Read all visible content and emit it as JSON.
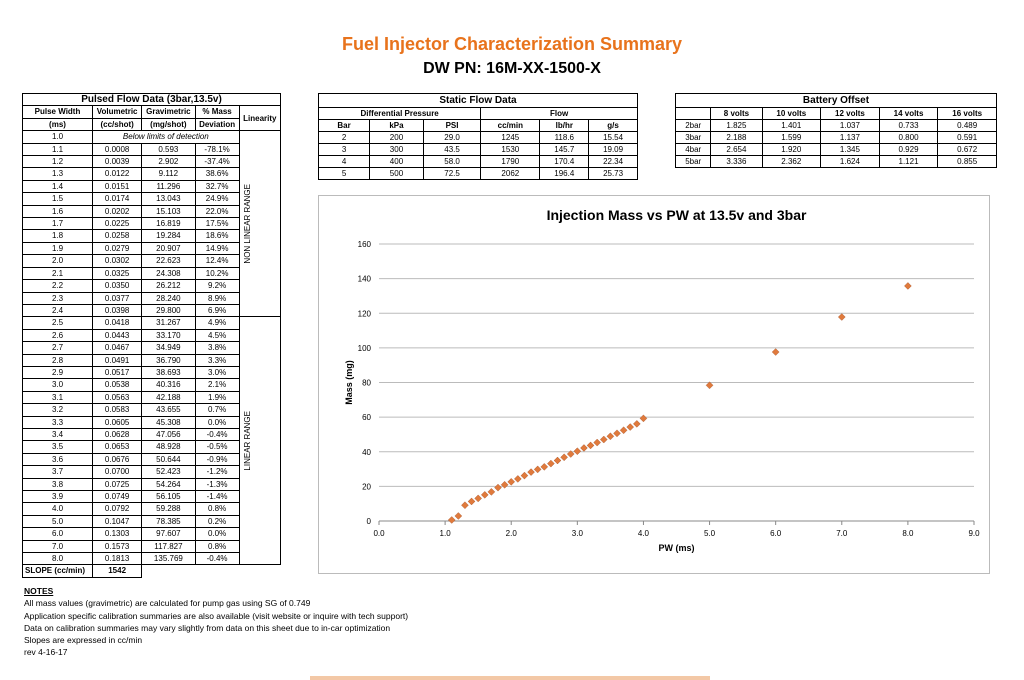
{
  "header": {
    "title": "Fuel Injector Characterization Summary",
    "subtitle": "DW PN: 16M-XX-1500-X"
  },
  "pulsed": {
    "title": "Pulsed Flow Data (3bar,13.5v)",
    "headers1": [
      "Pulse Width",
      "Volumetric",
      "Gravimetric",
      "% Mass",
      "Linearity"
    ],
    "headers2": [
      "(ms)",
      "(cc/shot)",
      "(mg/shot)",
      "Deviation"
    ],
    "below_limits": "Below limits of detection",
    "nonlinear_label": "NON LINEAR RANGE",
    "linear_label": "LINEAR RANGE",
    "rows": [
      [
        "1.0",
        "",
        "",
        ""
      ],
      [
        "1.1",
        "0.0008",
        "0.593",
        "-78.1%"
      ],
      [
        "1.2",
        "0.0039",
        "2.902",
        "-37.4%"
      ],
      [
        "1.3",
        "0.0122",
        "9.112",
        "38.6%"
      ],
      [
        "1.4",
        "0.0151",
        "11.296",
        "32.7%"
      ],
      [
        "1.5",
        "0.0174",
        "13.043",
        "24.9%"
      ],
      [
        "1.6",
        "0.0202",
        "15.103",
        "22.0%"
      ],
      [
        "1.7",
        "0.0225",
        "16.819",
        "17.5%"
      ],
      [
        "1.8",
        "0.0258",
        "19.284",
        "18.6%"
      ],
      [
        "1.9",
        "0.0279",
        "20.907",
        "14.9%"
      ],
      [
        "2.0",
        "0.0302",
        "22.623",
        "12.4%"
      ],
      [
        "2.1",
        "0.0325",
        "24.308",
        "10.2%"
      ],
      [
        "2.2",
        "0.0350",
        "26.212",
        "9.2%"
      ],
      [
        "2.3",
        "0.0377",
        "28.240",
        "8.9%"
      ],
      [
        "2.4",
        "0.0398",
        "29.800",
        "6.9%"
      ],
      [
        "2.5",
        "0.0418",
        "31.267",
        "4.9%"
      ],
      [
        "2.6",
        "0.0443",
        "33.170",
        "4.5%"
      ],
      [
        "2.7",
        "0.0467",
        "34.949",
        "3.8%"
      ],
      [
        "2.8",
        "0.0491",
        "36.790",
        "3.3%"
      ],
      [
        "2.9",
        "0.0517",
        "38.693",
        "3.0%"
      ],
      [
        "3.0",
        "0.0538",
        "40.316",
        "2.1%"
      ],
      [
        "3.1",
        "0.0563",
        "42.188",
        "1.9%"
      ],
      [
        "3.2",
        "0.0583",
        "43.655",
        "0.7%"
      ],
      [
        "3.3",
        "0.0605",
        "45.308",
        "0.0%"
      ],
      [
        "3.4",
        "0.0628",
        "47.056",
        "-0.4%"
      ],
      [
        "3.5",
        "0.0653",
        "48.928",
        "-0.5%"
      ],
      [
        "3.6",
        "0.0676",
        "50.644",
        "-0.9%"
      ],
      [
        "3.7",
        "0.0700",
        "52.423",
        "-1.2%"
      ],
      [
        "3.8",
        "0.0725",
        "54.264",
        "-1.3%"
      ],
      [
        "3.9",
        "0.0749",
        "56.105",
        "-1.4%"
      ],
      [
        "4.0",
        "0.0792",
        "59.288",
        "0.8%"
      ],
      [
        "5.0",
        "0.1047",
        "78.385",
        "0.2%"
      ],
      [
        "6.0",
        "0.1303",
        "97.607",
        "0.0%"
      ],
      [
        "7.0",
        "0.1573",
        "117.827",
        "0.8%"
      ],
      [
        "8.0",
        "0.1813",
        "135.769",
        "-0.4%"
      ]
    ],
    "slope_label": "SLOPE (cc/min)",
    "slope_value": "1542"
  },
  "static": {
    "title": "Static Flow Data",
    "group_headers": [
      "Differential Pressure",
      "Flow"
    ],
    "headers": [
      "Bar",
      "kPa",
      "PSI",
      "cc/min",
      "lb/hr",
      "g/s"
    ],
    "rows": [
      [
        "2",
        "200",
        "29.0",
        "1245",
        "118.6",
        "15.54"
      ],
      [
        "3",
        "300",
        "43.5",
        "1530",
        "145.7",
        "19.09"
      ],
      [
        "4",
        "400",
        "58.0",
        "1790",
        "170.4",
        "22.34"
      ],
      [
        "5",
        "500",
        "72.5",
        "2062",
        "196.4",
        "25.73"
      ]
    ]
  },
  "battery": {
    "title": "Battery Offset",
    "headers": [
      "",
      "8 volts",
      "10 volts",
      "12 volts",
      "14 volts",
      "16 volts"
    ],
    "rows": [
      [
        "2bar",
        "1.825",
        "1.401",
        "1.037",
        "0.733",
        "0.489"
      ],
      [
        "3bar",
        "2.188",
        "1.599",
        "1.137",
        "0.800",
        "0.591"
      ],
      [
        "4bar",
        "2.654",
        "1.920",
        "1.345",
        "0.929",
        "0.672"
      ],
      [
        "5bar",
        "3.336",
        "2.362",
        "1.624",
        "1.121",
        "0.855"
      ]
    ]
  },
  "chart_data": {
    "type": "scatter",
    "title": "Injection Mass vs PW at 13.5v and 3bar",
    "xlabel": "PW (ms)",
    "ylabel": "Mass (mg)",
    "xlim": [
      0,
      9
    ],
    "ylim": [
      0,
      160
    ],
    "xticks": [
      "0.0",
      "1.0",
      "2.0",
      "3.0",
      "4.0",
      "5.0",
      "6.0",
      "7.0",
      "8.0",
      "9.0"
    ],
    "yticks": [
      "0",
      "20",
      "40",
      "60",
      "80",
      "100",
      "120",
      "140",
      "160"
    ],
    "grid": "horizontal",
    "marker_color": "#e07a3c",
    "x": [
      1.1,
      1.2,
      1.3,
      1.4,
      1.5,
      1.6,
      1.7,
      1.8,
      1.9,
      2.0,
      2.1,
      2.2,
      2.3,
      2.4,
      2.5,
      2.6,
      2.7,
      2.8,
      2.9,
      3.0,
      3.1,
      3.2,
      3.3,
      3.4,
      3.5,
      3.6,
      3.7,
      3.8,
      3.9,
      4.0,
      5.0,
      6.0,
      7.0,
      8.0
    ],
    "y": [
      0.593,
      2.902,
      9.112,
      11.296,
      13.043,
      15.103,
      16.819,
      19.284,
      20.907,
      22.623,
      24.308,
      26.212,
      28.24,
      29.8,
      31.267,
      33.17,
      34.949,
      36.79,
      38.693,
      40.316,
      42.188,
      43.655,
      45.308,
      47.056,
      48.928,
      50.644,
      52.423,
      54.264,
      56.105,
      59.288,
      78.385,
      97.607,
      117.827,
      135.769
    ]
  },
  "notes": {
    "header": "NOTES",
    "lines": [
      "All mass values (gravimetric) are calculated for pump gas using SG of 0.749",
      "Application specific calibration summaries are also available (visit website or inquire with tech support)",
      "Data on calibration summaries may vary slightly from data on this sheet due to in-car optimization",
      "Slopes are expressed in cc/min",
      "rev 4-16-17"
    ]
  }
}
